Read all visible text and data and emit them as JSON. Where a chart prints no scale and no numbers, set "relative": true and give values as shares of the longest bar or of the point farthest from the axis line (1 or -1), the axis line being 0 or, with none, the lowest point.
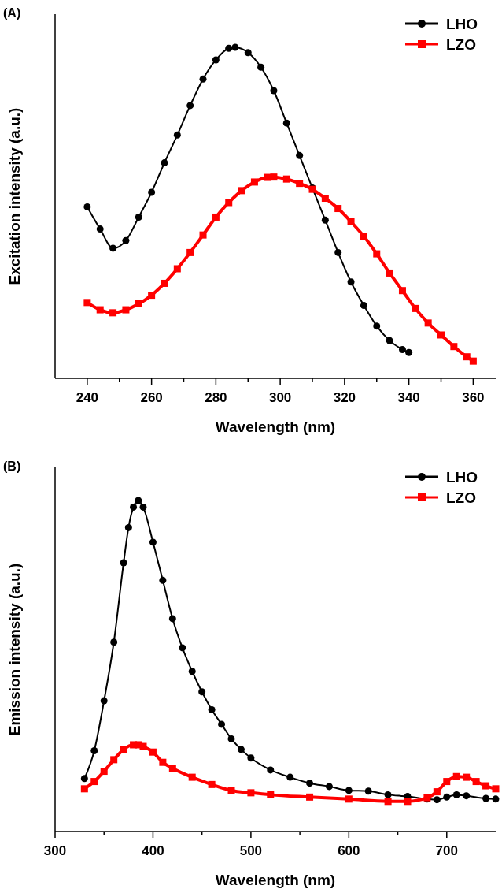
{
  "chart_data": [
    {
      "type": "line",
      "title": "(A)",
      "xlabel": "Wavelength (nm)",
      "ylabel": "Excitation intensity (a.u.)",
      "relative": true,
      "legend": "top right",
      "xlim": [
        230,
        367
      ],
      "xticks": [
        240,
        {
          "value": 250,
          "label": null
        },
        260,
        {
          "value": 270,
          "label": null
        },
        280,
        {
          "value": 290,
          "label": null
        },
        300,
        {
          "value": 310,
          "label": null
        },
        320,
        {
          "value": 330,
          "label": null
        },
        340,
        {
          "value": 350,
          "label": null
        },
        360
      ],
      "series": [
        {
          "name": "LHO",
          "color": "#000000",
          "marker": "circle",
          "x": [
            240,
            244,
            248,
            252,
            256,
            260,
            264,
            268,
            272,
            276,
            280,
            284,
            286,
            290,
            294,
            298,
            302,
            306,
            310,
            314,
            318,
            322,
            326,
            330,
            334,
            338,
            340
          ],
          "values": [
            0.518,
            0.451,
            0.393,
            0.416,
            0.487,
            0.562,
            0.651,
            0.735,
            0.824,
            0.904,
            0.962,
            0.997,
            1,
            0.984,
            0.94,
            0.869,
            0.771,
            0.673,
            0.575,
            0.478,
            0.38,
            0.291,
            0.22,
            0.158,
            0.114,
            0.087,
            0.078
          ]
        },
        {
          "name": "LZO",
          "color": "#ff0000",
          "marker": "square",
          "x": [
            240,
            244,
            248,
            252,
            256,
            260,
            264,
            268,
            272,
            276,
            280,
            284,
            288,
            292,
            296,
            298,
            302,
            306,
            310,
            314,
            318,
            322,
            326,
            330,
            334,
            338,
            342,
            346,
            350,
            354,
            358,
            360
          ],
          "values": [
            0.229,
            0.207,
            0.198,
            0.207,
            0.225,
            0.251,
            0.287,
            0.331,
            0.38,
            0.433,
            0.487,
            0.531,
            0.567,
            0.593,
            0.607,
            0.608,
            0.602,
            0.589,
            0.571,
            0.544,
            0.513,
            0.473,
            0.429,
            0.376,
            0.318,
            0.265,
            0.211,
            0.167,
            0.131,
            0.096,
            0.065,
            0.052
          ]
        }
      ]
    },
    {
      "type": "line",
      "title": "(B)",
      "xlabel": "Wavelength (nm)",
      "ylabel": "Emission intensity (a.u.)",
      "relative": true,
      "legend": "top right",
      "xlim": [
        300,
        750
      ],
      "xticks": [
        300,
        {
          "value": 350,
          "label": null
        },
        400,
        {
          "value": 450,
          "label": null
        },
        500,
        {
          "value": 550,
          "label": null
        },
        600,
        {
          "value": 650,
          "label": null
        },
        700
      ],
      "series": [
        {
          "name": "LHO",
          "color": "#000000",
          "marker": "circle",
          "x": [
            330,
            340,
            350,
            360,
            370,
            375,
            380,
            385,
            390,
            400,
            410,
            420,
            430,
            440,
            450,
            460,
            470,
            480,
            490,
            500,
            520,
            540,
            560,
            580,
            600,
            620,
            640,
            660,
            680,
            690,
            700,
            710,
            720,
            740,
            750
          ],
          "values": [
            0.16,
            0.244,
            0.395,
            0.572,
            0.812,
            0.918,
            0.98,
            1,
            0.98,
            0.874,
            0.759,
            0.643,
            0.555,
            0.484,
            0.422,
            0.368,
            0.324,
            0.28,
            0.248,
            0.222,
            0.186,
            0.164,
            0.146,
            0.136,
            0.124,
            0.122,
            0.111,
            0.106,
            0.098,
            0.096,
            0.104,
            0.111,
            0.108,
            0.1,
            0.098
          ]
        },
        {
          "name": "LZO",
          "color": "#ff0000",
          "marker": "square",
          "x": [
            330,
            340,
            350,
            360,
            370,
            380,
            385,
            390,
            400,
            410,
            420,
            440,
            460,
            480,
            500,
            520,
            560,
            600,
            640,
            660,
            680,
            690,
            700,
            710,
            720,
            730,
            740,
            750
          ],
          "values": [
            0.129,
            0.151,
            0.182,
            0.217,
            0.248,
            0.262,
            0.262,
            0.257,
            0.24,
            0.209,
            0.191,
            0.164,
            0.142,
            0.124,
            0.117,
            0.111,
            0.104,
            0.098,
            0.091,
            0.091,
            0.102,
            0.12,
            0.151,
            0.166,
            0.164,
            0.151,
            0.138,
            0.129
          ]
        }
      ]
    }
  ]
}
